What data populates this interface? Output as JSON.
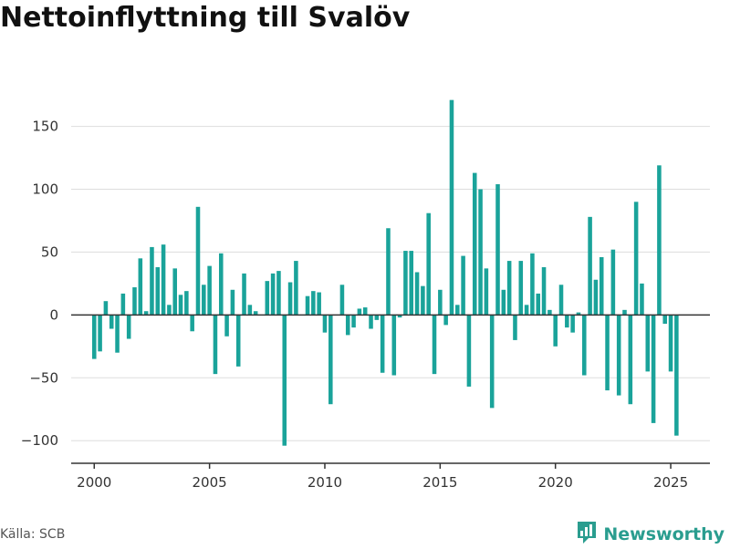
{
  "title": "Nettoinflyttning till Svalöv",
  "source": "Källa: SCB",
  "brand": {
    "name": "Newsworthy",
    "icon": "newsworthy-logo-icon"
  },
  "colors": {
    "bar": "#1aa39a",
    "grid": "#dddddd",
    "axis": "#333333",
    "brand": "#2a9d8f"
  },
  "chart_data": {
    "type": "bar",
    "title": "Nettoinflyttning till Svalöv",
    "xlabel": "",
    "ylabel": "",
    "ylim": [
      -118,
      178
    ],
    "xlim": [
      1999.0,
      2026.7
    ],
    "yticks": [
      -100,
      -50,
      0,
      50,
      100,
      150
    ],
    "xticks": [
      2000,
      2005,
      2010,
      2015,
      2020,
      2025
    ],
    "grid": true,
    "period": "quarterly",
    "categories": [
      "2000 Q1",
      "2000 Q2",
      "2000 Q3",
      "2000 Q4",
      "2001 Q1",
      "2001 Q2",
      "2001 Q3",
      "2001 Q4",
      "2002 Q1",
      "2002 Q2",
      "2002 Q3",
      "2002 Q4",
      "2003 Q1",
      "2003 Q2",
      "2003 Q3",
      "2003 Q4",
      "2004 Q1",
      "2004 Q2",
      "2004 Q3",
      "2004 Q4",
      "2005 Q1",
      "2005 Q2",
      "2005 Q3",
      "2005 Q4",
      "2006 Q1",
      "2006 Q2",
      "2006 Q3",
      "2006 Q4",
      "2007 Q1",
      "2007 Q2",
      "2007 Q3",
      "2007 Q4",
      "2008 Q1",
      "2008 Q2",
      "2008 Q3",
      "2008 Q4",
      "2009 Q1",
      "2009 Q2",
      "2009 Q3",
      "2009 Q4",
      "2010 Q1",
      "2010 Q2",
      "2010 Q3",
      "2010 Q4",
      "2011 Q1",
      "2011 Q2",
      "2011 Q3",
      "2011 Q4",
      "2012 Q1",
      "2012 Q2",
      "2012 Q3",
      "2012 Q4",
      "2013 Q1",
      "2013 Q2",
      "2013 Q3",
      "2013 Q4",
      "2014 Q1",
      "2014 Q2",
      "2014 Q3",
      "2014 Q4",
      "2015 Q1",
      "2015 Q2",
      "2015 Q3",
      "2015 Q4",
      "2016 Q1",
      "2016 Q2",
      "2016 Q3",
      "2016 Q4",
      "2017 Q1",
      "2017 Q2",
      "2017 Q3",
      "2017 Q4",
      "2018 Q1",
      "2018 Q2",
      "2018 Q3",
      "2018 Q4",
      "2019 Q1",
      "2019 Q2",
      "2019 Q3",
      "2019 Q4",
      "2020 Q1",
      "2020 Q2",
      "2020 Q3",
      "2020 Q4",
      "2021 Q1",
      "2021 Q2",
      "2021 Q3",
      "2021 Q4",
      "2022 Q1",
      "2022 Q2",
      "2022 Q3",
      "2022 Q4",
      "2023 Q1",
      "2023 Q2",
      "2023 Q3",
      "2023 Q4",
      "2024 Q1",
      "2024 Q2",
      "2024 Q3",
      "2024 Q4",
      "2025 Q1",
      "2025 Q2"
    ],
    "values": [
      -35,
      -29,
      11,
      -11,
      -30,
      17,
      -19,
      22,
      45,
      3,
      54,
      38,
      56,
      8,
      37,
      16,
      19,
      -13,
      86,
      24,
      39,
      -47,
      49,
      -17,
      20,
      -41,
      33,
      8,
      3,
      0,
      27,
      33,
      35,
      -104,
      26,
      43,
      0,
      15,
      19,
      18,
      -14,
      -71,
      0,
      24,
      -16,
      -10,
      5,
      6,
      -11,
      -4,
      -46,
      69,
      -48,
      -2,
      51,
      51,
      34,
      23,
      81,
      -47,
      20,
      -8,
      171,
      8,
      47,
      -57,
      113,
      100,
      37,
      -74,
      104,
      20,
      43,
      -20,
      43,
      8,
      49,
      17,
      38,
      4,
      -25,
      24,
      -10,
      -14,
      2,
      -48,
      78,
      28,
      46,
      -60,
      52,
      -64,
      4,
      -71,
      90,
      25,
      -45,
      -86,
      119,
      -7,
      -45,
      -96
    ]
  }
}
